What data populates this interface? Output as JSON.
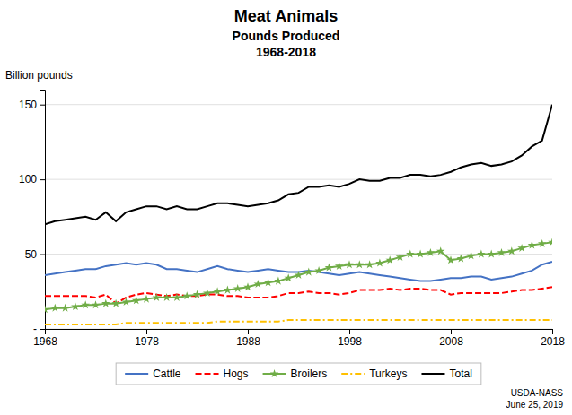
{
  "chart_data": {
    "type": "line",
    "title": "Meat Animals",
    "subtitle": [
      "Pounds Produced",
      "1968-2018"
    ],
    "y_label": "Billion pounds",
    "annotations": [
      "USDA-NASS",
      "June 25, 2019"
    ],
    "x": [
      1968,
      1969,
      1970,
      1971,
      1972,
      1973,
      1974,
      1975,
      1976,
      1977,
      1978,
      1979,
      1980,
      1981,
      1982,
      1983,
      1984,
      1985,
      1986,
      1987,
      1988,
      1989,
      1990,
      1991,
      1992,
      1993,
      1994,
      1995,
      1996,
      1997,
      1998,
      1999,
      2000,
      2001,
      2002,
      2003,
      2004,
      2005,
      2006,
      2007,
      2008,
      2009,
      2010,
      2011,
      2012,
      2013,
      2014,
      2015,
      2016,
      2017,
      2018
    ],
    "xlim": [
      1968,
      2018
    ],
    "xticks": [
      1968,
      1978,
      1988,
      1998,
      2008,
      2018
    ],
    "ylim": [
      0,
      160
    ],
    "yticks": [
      {
        "value": 0,
        "label": "-"
      },
      50,
      100,
      150
    ],
    "grid": true,
    "legend": "bottom",
    "series": [
      {
        "name": "Cattle",
        "color": "#4472C4",
        "line_style": "solid",
        "values": [
          36,
          37,
          38,
          39,
          40,
          40,
          42,
          43,
          44,
          43,
          44,
          43,
          40,
          40,
          39,
          38,
          40,
          42,
          40,
          39,
          38,
          39,
          40,
          39,
          38,
          38,
          39,
          38,
          37,
          36,
          37,
          38,
          37,
          36,
          35,
          34,
          33,
          32,
          32,
          33,
          34,
          34,
          35,
          35,
          33,
          34,
          35,
          37,
          39,
          43,
          45
        ]
      },
      {
        "name": "Hogs",
        "color": "#FF0000",
        "line_style": "dashed",
        "values": [
          22,
          22,
          22,
          22,
          22,
          21,
          23,
          17,
          21,
          23,
          24,
          23,
          22,
          23,
          22,
          22,
          23,
          23,
          22,
          22,
          21,
          21,
          21,
          22,
          24,
          24,
          25,
          24,
          24,
          23,
          24,
          26,
          26,
          26,
          27,
          26,
          27,
          27,
          26,
          26,
          23,
          24,
          24,
          24,
          24,
          24,
          25,
          26,
          26,
          27,
          28
        ]
      },
      {
        "name": "Broilers",
        "color": "#70AD47",
        "line_style": "solid",
        "marker": "star",
        "values": [
          13,
          14,
          14,
          15,
          16,
          16,
          17,
          17,
          18,
          19,
          20,
          21,
          21,
          21,
          22,
          23,
          24,
          25,
          26,
          27,
          28,
          30,
          31,
          32,
          34,
          36,
          38,
          39,
          41,
          42,
          43,
          43,
          43,
          44,
          46,
          48,
          50,
          50,
          51,
          52,
          46,
          47,
          49,
          50,
          50,
          51,
          52,
          54,
          56,
          57,
          58
        ]
      },
      {
        "name": "Turkeys",
        "color": "#FFC000",
        "line_style": "dashdot",
        "values": [
          3,
          3,
          3,
          3,
          3,
          3,
          3,
          3,
          4,
          4,
          4,
          4,
          4,
          4,
          4,
          4,
          4,
          5,
          5,
          5,
          5,
          5,
          5,
          5,
          6,
          6,
          6,
          6,
          6,
          6,
          6,
          6,
          6,
          6,
          6,
          6,
          6,
          6,
          6,
          6,
          6,
          6,
          6,
          6,
          6,
          6,
          6,
          6,
          6,
          6,
          6
        ]
      },
      {
        "name": "Total",
        "color": "#000000",
        "line_style": "solid",
        "values": [
          70,
          72,
          73,
          74,
          75,
          73,
          78,
          72,
          78,
          80,
          82,
          82,
          80,
          82,
          80,
          80,
          82,
          84,
          84,
          83,
          82,
          83,
          84,
          86,
          90,
          91,
          95,
          95,
          96,
          95,
          97,
          100,
          99,
          99,
          101,
          101,
          103,
          103,
          102,
          103,
          105,
          108,
          110,
          111,
          109,
          110,
          112,
          116,
          122,
          126,
          150
        ]
      }
    ]
  }
}
